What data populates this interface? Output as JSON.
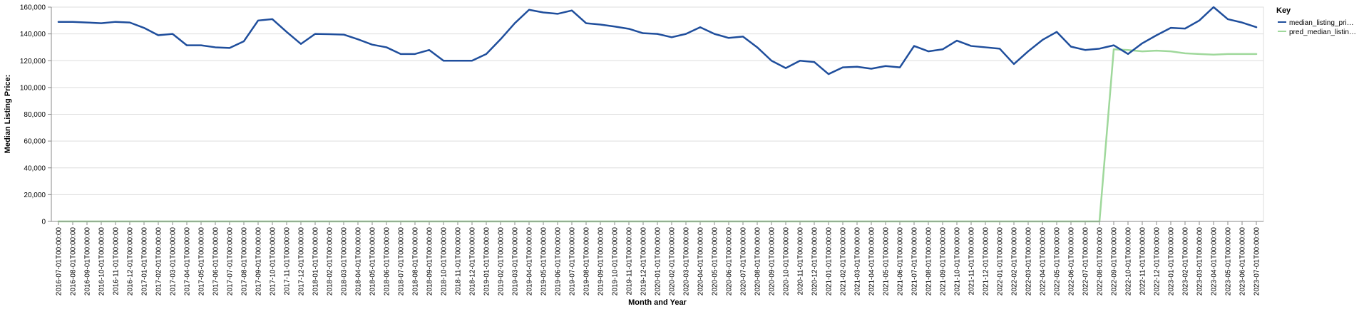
{
  "chart_data": {
    "type": "line",
    "xlabel": "Month and Year",
    "ylabel": "Median Listing Price:",
    "ylim": [
      0,
      160000
    ],
    "yticks": [
      "0",
      "20,000",
      "40,000",
      "60,000",
      "80,000",
      "100,000",
      "120,000",
      "140,000",
      "160,000"
    ],
    "grid": true,
    "legend": {
      "title": "Key",
      "position": "right",
      "entries": [
        "median_listing_pri…",
        "pred_median_listin…"
      ]
    },
    "x": [
      "2016-07-01T00:00:00",
      "2016-08-01T00:00:00",
      "2016-09-01T00:00:00",
      "2016-10-01T00:00:00",
      "2016-11-01T00:00:00",
      "2016-12-01T00:00:00",
      "2017-01-01T00:00:00",
      "2017-02-01T00:00:00",
      "2017-03-01T00:00:00",
      "2017-04-01T00:00:00",
      "2017-05-01T00:00:00",
      "2017-06-01T00:00:00",
      "2017-07-01T00:00:00",
      "2017-08-01T00:00:00",
      "2017-09-01T00:00:00",
      "2017-10-01T00:00:00",
      "2017-11-01T00:00:00",
      "2017-12-01T00:00:00",
      "2018-01-01T00:00:00",
      "2018-02-01T00:00:00",
      "2018-03-01T00:00:00",
      "2018-04-01T00:00:00",
      "2018-05-01T00:00:00",
      "2018-06-01T00:00:00",
      "2018-07-01T00:00:00",
      "2018-08-01T00:00:00",
      "2018-09-01T00:00:00",
      "2018-10-01T00:00:00",
      "2018-11-01T00:00:00",
      "2018-12-01T00:00:00",
      "2019-01-01T00:00:00",
      "2019-02-01T00:00:00",
      "2019-03-01T00:00:00",
      "2019-04-01T00:00:00",
      "2019-05-01T00:00:00",
      "2019-06-01T00:00:00",
      "2019-07-01T00:00:00",
      "2019-08-01T00:00:00",
      "2019-09-01T00:00:00",
      "2019-10-01T00:00:00",
      "2019-11-01T00:00:00",
      "2019-12-01T00:00:00",
      "2020-01-01T00:00:00",
      "2020-02-01T00:00:00",
      "2020-03-01T00:00:00",
      "2020-04-01T00:00:00",
      "2020-05-01T00:00:00",
      "2020-06-01T00:00:00",
      "2020-07-01T00:00:00",
      "2020-08-01T00:00:00",
      "2020-09-01T00:00:00",
      "2020-10-01T00:00:00",
      "2020-11-01T00:00:00",
      "2020-12-01T00:00:00",
      "2021-01-01T00:00:00",
      "2021-02-01T00:00:00",
      "2021-03-01T00:00:00",
      "2021-04-01T00:00:00",
      "2021-05-01T00:00:00",
      "2021-06-01T00:00:00",
      "2021-07-01T00:00:00",
      "2021-08-01T00:00:00",
      "2021-09-01T00:00:00",
      "2021-10-01T00:00:00",
      "2021-11-01T00:00:00",
      "2021-12-01T00:00:00",
      "2022-01-01T00:00:00",
      "2022-02-01T00:00:00",
      "2022-03-01T00:00:00",
      "2022-04-01T00:00:00",
      "2022-05-01T00:00:00",
      "2022-06-01T00:00:00",
      "2022-07-01T00:00:00",
      "2022-08-01T00:00:00",
      "2022-09-01T00:00:00",
      "2022-10-01T00:00:00",
      "2022-11-01T00:00:00",
      "2022-12-01T00:00:00",
      "2023-01-01T00:00:00",
      "2023-02-01T00:00:00",
      "2023-03-01T00:00:00",
      "2023-04-01T00:00:00",
      "2023-05-01T00:00:00",
      "2023-06-01T00:00:00",
      "2023-07-01T00:00:00"
    ],
    "series": [
      {
        "name": "median_listing_pri…",
        "color": "#1f4e9c",
        "values": [
          149000,
          149000,
          148500,
          148000,
          149000,
          148500,
          144500,
          139000,
          140000,
          131500,
          131500,
          130000,
          129500,
          134500,
          150000,
          151000,
          141500,
          132500,
          140000,
          139800,
          139500,
          136000,
          132000,
          130000,
          125000,
          125000,
          128000,
          120000,
          120000,
          120000,
          125000,
          136000,
          148000,
          158000,
          156000,
          155000,
          157500,
          148000,
          147000,
          145500,
          143800,
          140500,
          140000,
          137500,
          140000,
          145000,
          140000,
          137000,
          138000,
          130000,
          120000,
          114500,
          120000,
          119000,
          110000,
          115000,
          115500,
          114000,
          116000,
          115000,
          131000,
          127000,
          128500,
          135000,
          131000,
          130000,
          129000,
          117500,
          127000,
          135500,
          141500,
          130500,
          128000,
          129000,
          131500,
          125000,
          133000,
          139000,
          144500,
          144000,
          150000,
          160000,
          151000,
          148500,
          145000
        ]
      },
      {
        "name": "pred_median_listin…",
        "color": "#9fd89b",
        "values": [
          0,
          0,
          0,
          0,
          0,
          0,
          0,
          0,
          0,
          0,
          0,
          0,
          0,
          0,
          0,
          0,
          0,
          0,
          0,
          0,
          0,
          0,
          0,
          0,
          0,
          0,
          0,
          0,
          0,
          0,
          0,
          0,
          0,
          0,
          0,
          0,
          0,
          0,
          0,
          0,
          0,
          0,
          0,
          0,
          0,
          0,
          0,
          0,
          0,
          0,
          0,
          0,
          0,
          0,
          0,
          0,
          0,
          0,
          0,
          0,
          0,
          0,
          0,
          0,
          0,
          0,
          0,
          0,
          0,
          0,
          0,
          0,
          0,
          0,
          128500,
          128000,
          127000,
          127500,
          127000,
          125500,
          125000,
          124500,
          125000,
          125000,
          125000
        ]
      }
    ]
  }
}
